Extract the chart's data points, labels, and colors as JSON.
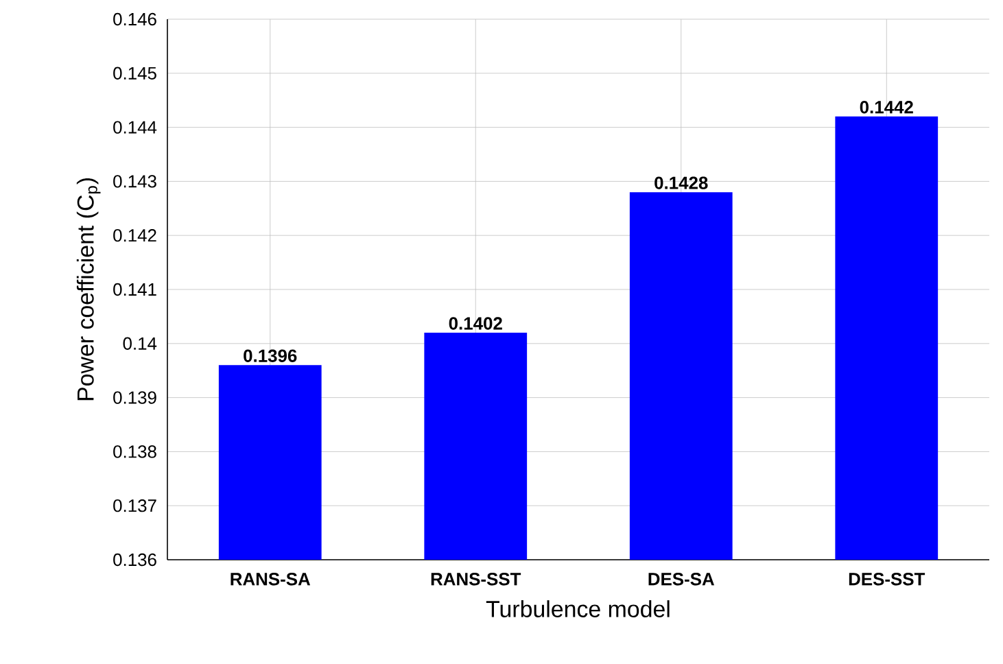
{
  "chart_data": {
    "type": "bar",
    "xlabel": "Turbulence model",
    "ylabel": "Power coefficient (C$_{p}$)",
    "categories": [
      "RANS-SA",
      "RANS-SST",
      "DES-SA",
      "DES-SST"
    ],
    "values": [
      0.1396,
      0.1402,
      0.1428,
      0.1442
    ],
    "color": "#0000ff",
    "ylim": [
      0.136,
      0.146
    ],
    "yticks": [
      0.136,
      0.137,
      0.138,
      0.139,
      0.14,
      0.141,
      0.142,
      0.143,
      0.144,
      0.145,
      0.146
    ],
    "grid": true,
    "data_labels": true
  }
}
